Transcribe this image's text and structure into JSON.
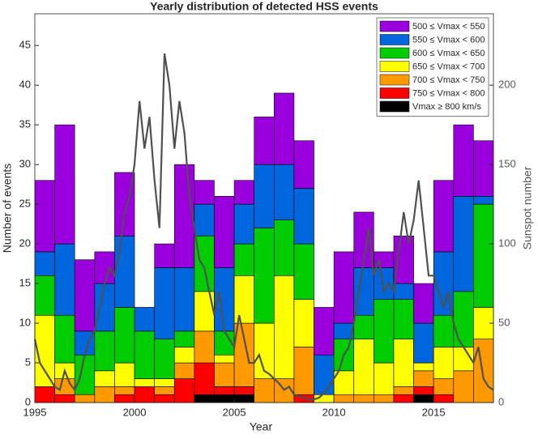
{
  "chart_data": {
    "type": "stacked-bar",
    "title": "Yearly distribution of detected HSS events",
    "xlabel": "Year",
    "ylabel": "Number of events",
    "y2label": "Sunspot number",
    "x": [
      1995,
      1996,
      1997,
      1998,
      1999,
      2000,
      2001,
      2002,
      2003,
      2004,
      2005,
      2006,
      2007,
      2008,
      2009,
      2010,
      2011,
      2012,
      2013,
      2014,
      2015,
      2016,
      2017
    ],
    "xlim": [
      1995,
      2018
    ],
    "xticks": [
      1995,
      2000,
      2005,
      2010,
      2015
    ],
    "ylim": [
      0,
      49
    ],
    "yticks": [
      0,
      5,
      10,
      15,
      20,
      25,
      30,
      35,
      40,
      45
    ],
    "y2lim": [
      0,
      245
    ],
    "y2ticks": [
      0,
      50,
      100,
      150,
      200
    ],
    "legend": "northeast",
    "series": [
      {
        "name": "500 ≤ Vmax < 550",
        "color": "#9900dd",
        "values": [
          9,
          15,
          9,
          4,
          8,
          0,
          3,
          13,
          3,
          9,
          3,
          6,
          9,
          6,
          6,
          9,
          7,
          2,
          6,
          5,
          9,
          9,
          7
        ]
      },
      {
        "name": "550 ≤ Vmax < 600",
        "color": "#0066dd",
        "values": [
          3,
          9,
          3,
          6,
          9,
          3,
          9,
          8,
          4,
          8,
          5,
          8,
          7,
          7,
          5,
          2,
          6,
          4,
          2,
          5,
          8,
          12,
          1
        ]
      },
      {
        "name": "600 ≤ Vmax < 650",
        "color": "#00cc00",
        "values": [
          5,
          6,
          5,
          5,
          7,
          6,
          5,
          2,
          7,
          3,
          4,
          12,
          7,
          7,
          0,
          4,
          3,
          8,
          5,
          0,
          4,
          7,
          13
        ]
      },
      {
        "name": "650 ≤ Vmax < 700",
        "color": "#ffff00",
        "values": [
          9,
          2,
          0,
          2,
          3,
          1,
          1,
          2,
          5,
          1,
          6,
          7,
          13,
          6,
          1,
          3,
          7,
          4,
          6,
          1,
          4,
          3,
          4
        ]
      },
      {
        "name": "700 ≤ Vmax < 750",
        "color": "#ff9900",
        "values": [
          0,
          2,
          1,
          2,
          1,
          0,
          1,
          2,
          4,
          3,
          8,
          3,
          3,
          6,
          0,
          1,
          1,
          1,
          1,
          2,
          2,
          4,
          8
        ]
      },
      {
        "name": "750 ≤ Vmax < 800",
        "color": "#ff0000",
        "values": [
          2,
          1,
          0,
          0,
          1,
          2,
          1,
          3,
          4,
          1,
          1,
          0,
          0,
          1,
          0,
          0,
          0,
          0,
          1,
          1,
          1,
          0,
          0
        ]
      },
      {
        "name": "Vmax ≥ 800 km/s",
        "color": "#000000",
        "values": [
          0,
          0,
          0,
          0,
          0,
          0,
          0,
          0,
          1,
          1,
          1,
          0,
          0,
          0,
          0,
          0,
          0,
          0,
          0,
          1,
          0,
          0,
          0
        ]
      }
    ],
    "sunspots": {
      "color": "#505050",
      "axis": "y2",
      "x": [
        1995,
        1995.25,
        1995.5,
        1995.75,
        1996,
        1996.25,
        1996.5,
        1996.75,
        1997,
        1997.25,
        1997.5,
        1997.75,
        1998,
        1998.25,
        1998.5,
        1998.75,
        1999,
        1999.25,
        1999.5,
        1999.75,
        2000,
        2000.25,
        2000.5,
        2000.75,
        2001,
        2001.25,
        2001.5,
        2001.75,
        2002,
        2002.25,
        2002.5,
        2002.75,
        2003,
        2003.25,
        2003.5,
        2003.75,
        2004,
        2004.25,
        2004.5,
        2004.75,
        2005,
        2005.25,
        2005.5,
        2005.75,
        2006,
        2006.25,
        2006.5,
        2006.75,
        2007,
        2007.25,
        2007.5,
        2007.75,
        2008,
        2008.25,
        2008.5,
        2008.75,
        2009,
        2009.25,
        2009.5,
        2009.75,
        2010,
        2010.25,
        2010.5,
        2010.75,
        2011,
        2011.25,
        2011.5,
        2011.75,
        2012,
        2012.25,
        2012.5,
        2012.75,
        2013,
        2013.25,
        2013.5,
        2013.75,
        2014,
        2014.25,
        2014.5,
        2014.75,
        2015,
        2015.25,
        2015.5,
        2015.75,
        2016,
        2016.25,
        2016.5,
        2016.75,
        2017,
        2017.25,
        2017.5,
        2017.75,
        2018
      ],
      "values": [
        40,
        25,
        20,
        15,
        10,
        8,
        20,
        12,
        8,
        15,
        30,
        40,
        45,
        60,
        75,
        85,
        80,
        95,
        120,
        130,
        150,
        190,
        160,
        180,
        140,
        110,
        220,
        200,
        160,
        190,
        170,
        130,
        110,
        90,
        85,
        70,
        55,
        70,
        45,
        40,
        35,
        55,
        40,
        25,
        25,
        30,
        20,
        18,
        15,
        12,
        8,
        10,
        5,
        4,
        3,
        2,
        2,
        3,
        6,
        10,
        15,
        20,
        30,
        35,
        50,
        70,
        90,
        110,
        80,
        90,
        70,
        75,
        70,
        95,
        120,
        100,
        115,
        140,
        110,
        80,
        80,
        70,
        60,
        70,
        50,
        40,
        35,
        30,
        25,
        35,
        15,
        10,
        8
      ]
    }
  }
}
